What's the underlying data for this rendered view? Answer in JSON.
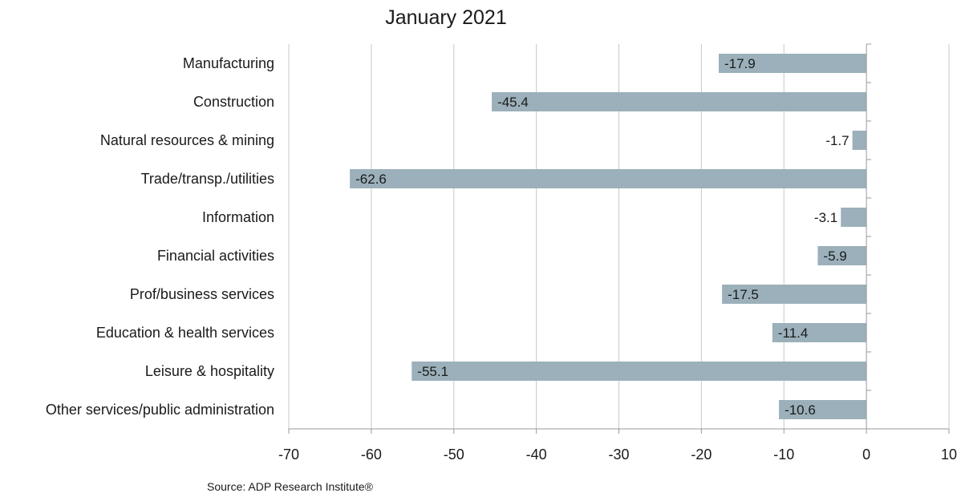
{
  "chart_data": {
    "type": "bar",
    "orientation": "horizontal",
    "title": "January 2021",
    "categories": [
      "Manufacturing",
      "Construction",
      "Natural resources & mining",
      "Trade/transp./utilities",
      "Information",
      "Financial activities",
      "Prof/business services",
      "Education & health services",
      "Leisure & hospitality",
      "Other services/public administration"
    ],
    "values": [
      -17.9,
      -45.4,
      -1.7,
      -62.6,
      -3.1,
      -5.9,
      -17.5,
      -11.4,
      -55.1,
      -10.6
    ],
    "data_labels": [
      "-17.9",
      "-45.4",
      "-1.7",
      "-62.6",
      "-3.1",
      "-5.9",
      "-17.5",
      "-11.4",
      "-55.1",
      "-10.6"
    ],
    "xlim": [
      -70,
      10
    ],
    "x_ticks": [
      -70,
      -60,
      -50,
      -40,
      -30,
      -20,
      -10,
      0,
      10
    ],
    "x_tick_labels": [
      "-70",
      "-60",
      "-50",
      "-40",
      "-30",
      "-20",
      "-10",
      "0",
      "10"
    ],
    "xlabel": "",
    "ylabel": "",
    "grid": "vertical",
    "legend": "none",
    "source": "Source: ADP Research Institute®",
    "colors": {
      "bar": "#9bb0ba",
      "grid": "#c8c8c8",
      "axis": "#9a9a9a"
    }
  }
}
